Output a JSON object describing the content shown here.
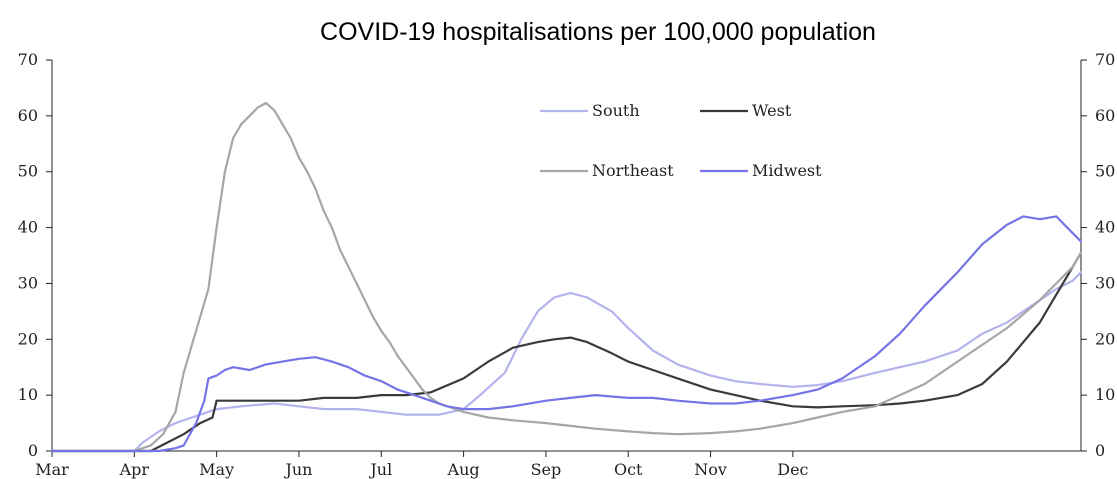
{
  "chart_data": {
    "type": "line",
    "title": "COVID-19 hospitalisations per 100,000 population",
    "xlabel": "",
    "ylabel": "",
    "ylim": [
      0,
      70
    ],
    "yticks": [
      0,
      10,
      20,
      30,
      40,
      50,
      60,
      70
    ],
    "grid": false,
    "legend": "top-center",
    "x_categories": [
      "Mar",
      "Apr",
      "May",
      "Jun",
      "Jul",
      "Aug",
      "Sep",
      "Oct",
      "Nov",
      "Dec"
    ],
    "x_unit": "month (1 = Mar start)",
    "series": [
      {
        "name": "South",
        "color": "#b3b3ee",
        "points": [
          [
            0,
            0
          ],
          [
            1.0,
            0
          ],
          [
            1.1,
            1.5
          ],
          [
            1.3,
            3.5
          ],
          [
            1.5,
            5
          ],
          [
            1.7,
            6
          ],
          [
            2.0,
            7.5
          ],
          [
            2.3,
            8
          ],
          [
            2.7,
            8.5
          ],
          [
            3.0,
            8
          ],
          [
            3.3,
            7.5
          ],
          [
            3.7,
            7.5
          ],
          [
            4.0,
            7
          ],
          [
            4.3,
            6.5
          ],
          [
            4.7,
            6.5
          ],
          [
            5.0,
            7.5
          ],
          [
            5.2,
            10
          ],
          [
            5.5,
            14
          ],
          [
            5.7,
            20
          ],
          [
            5.9,
            25
          ],
          [
            6.1,
            27.5
          ],
          [
            6.3,
            28.3
          ],
          [
            6.5,
            27.5
          ],
          [
            6.8,
            25
          ],
          [
            7.0,
            22
          ],
          [
            7.3,
            18
          ],
          [
            7.6,
            15.5
          ],
          [
            8.0,
            13.5
          ],
          [
            8.3,
            12.5
          ],
          [
            8.6,
            12
          ],
          [
            9.0,
            11.5
          ],
          [
            9.3,
            11.8
          ],
          [
            9.6,
            12.5
          ],
          [
            10.0,
            14
          ],
          [
            10.3,
            15
          ],
          [
            10.6,
            16
          ],
          [
            11.0,
            18
          ],
          [
            11.3,
            21
          ],
          [
            11.6,
            23
          ],
          [
            12.0,
            27
          ],
          [
            12.2,
            29
          ],
          [
            12.4,
            30.5
          ],
          [
            12.5,
            32
          ]
        ]
      },
      {
        "name": "West",
        "color": "#3a3a3a",
        "points": [
          [
            0,
            0
          ],
          [
            1.2,
            0
          ],
          [
            1.4,
            1.5
          ],
          [
            1.6,
            3
          ],
          [
            1.8,
            5
          ],
          [
            1.95,
            6
          ],
          [
            2.0,
            9
          ],
          [
            2.3,
            9
          ],
          [
            2.7,
            9
          ],
          [
            3.0,
            9
          ],
          [
            3.3,
            9.5
          ],
          [
            3.7,
            9.5
          ],
          [
            4.0,
            10
          ],
          [
            4.3,
            10
          ],
          [
            4.6,
            10.5
          ],
          [
            5.0,
            13
          ],
          [
            5.3,
            16
          ],
          [
            5.6,
            18.5
          ],
          [
            5.9,
            19.5
          ],
          [
            6.1,
            20
          ],
          [
            6.3,
            20.3
          ],
          [
            6.5,
            19.5
          ],
          [
            6.8,
            17.5
          ],
          [
            7.0,
            16
          ],
          [
            7.3,
            14.5
          ],
          [
            7.6,
            13
          ],
          [
            8.0,
            11
          ],
          [
            8.3,
            10
          ],
          [
            8.6,
            9
          ],
          [
            9.0,
            8
          ],
          [
            9.3,
            7.8
          ],
          [
            9.6,
            8
          ],
          [
            10.0,
            8.2
          ],
          [
            10.3,
            8.5
          ],
          [
            10.6,
            9
          ],
          [
            11.0,
            10
          ],
          [
            11.3,
            12
          ],
          [
            11.6,
            16
          ],
          [
            12.0,
            23
          ],
          [
            12.2,
            28
          ],
          [
            12.4,
            33
          ],
          [
            12.5,
            35.5
          ]
        ]
      },
      {
        "name": "Northeast",
        "color": "#a6a6a6",
        "points": [
          [
            0,
            0
          ],
          [
            1.0,
            0
          ],
          [
            1.1,
            0.5
          ],
          [
            1.2,
            1
          ],
          [
            1.35,
            3
          ],
          [
            1.5,
            7
          ],
          [
            1.6,
            14
          ],
          [
            1.7,
            19
          ],
          [
            1.8,
            24
          ],
          [
            1.9,
            29
          ],
          [
            2.0,
            40
          ],
          [
            2.1,
            50
          ],
          [
            2.2,
            56
          ],
          [
            2.3,
            58.5
          ],
          [
            2.4,
            60
          ],
          [
            2.5,
            61.5
          ],
          [
            2.6,
            62.3
          ],
          [
            2.7,
            61
          ],
          [
            2.8,
            58.5
          ],
          [
            2.9,
            56
          ],
          [
            3.0,
            52.5
          ],
          [
            3.1,
            50
          ],
          [
            3.2,
            47
          ],
          [
            3.3,
            43
          ],
          [
            3.4,
            40
          ],
          [
            3.5,
            36
          ],
          [
            3.6,
            33
          ],
          [
            3.7,
            30
          ],
          [
            3.8,
            27
          ],
          [
            3.9,
            24
          ],
          [
            4.0,
            21.5
          ],
          [
            4.1,
            19.5
          ],
          [
            4.2,
            17
          ],
          [
            4.3,
            15
          ],
          [
            4.4,
            13
          ],
          [
            4.5,
            11
          ],
          [
            4.6,
            9.5
          ],
          [
            4.7,
            8.5
          ],
          [
            5.0,
            7
          ],
          [
            5.3,
            6
          ],
          [
            5.6,
            5.5
          ],
          [
            6.0,
            5
          ],
          [
            6.3,
            4.5
          ],
          [
            6.6,
            4
          ],
          [
            7.0,
            3.5
          ],
          [
            7.3,
            3.2
          ],
          [
            7.6,
            3
          ],
          [
            8.0,
            3.2
          ],
          [
            8.3,
            3.5
          ],
          [
            8.6,
            4
          ],
          [
            9.0,
            5
          ],
          [
            9.3,
            6
          ],
          [
            9.6,
            7
          ],
          [
            10.0,
            8
          ],
          [
            10.3,
            10
          ],
          [
            10.6,
            12
          ],
          [
            11.0,
            16
          ],
          [
            11.3,
            19
          ],
          [
            11.6,
            22
          ],
          [
            12.0,
            27
          ],
          [
            12.2,
            30
          ],
          [
            12.4,
            33
          ],
          [
            12.5,
            35.5
          ]
        ]
      },
      {
        "name": "Midwest",
        "color": "#7474e6",
        "points": [
          [
            0,
            0
          ],
          [
            1.3,
            0
          ],
          [
            1.5,
            0.5
          ],
          [
            1.6,
            1
          ],
          [
            1.75,
            5
          ],
          [
            1.85,
            9
          ],
          [
            1.9,
            13
          ],
          [
            2.0,
            13.5
          ],
          [
            2.1,
            14.5
          ],
          [
            2.2,
            15
          ],
          [
            2.4,
            14.5
          ],
          [
            2.6,
            15.5
          ],
          [
            2.8,
            16
          ],
          [
            3.0,
            16.5
          ],
          [
            3.2,
            16.8
          ],
          [
            3.4,
            16
          ],
          [
            3.6,
            15
          ],
          [
            3.8,
            13.5
          ],
          [
            4.0,
            12.5
          ],
          [
            4.2,
            11
          ],
          [
            4.4,
            10
          ],
          [
            4.6,
            9
          ],
          [
            4.8,
            8
          ],
          [
            5.0,
            7.5
          ],
          [
            5.3,
            7.5
          ],
          [
            5.6,
            8
          ],
          [
            6.0,
            9
          ],
          [
            6.3,
            9.5
          ],
          [
            6.6,
            10
          ],
          [
            7.0,
            9.5
          ],
          [
            7.3,
            9.5
          ],
          [
            7.6,
            9
          ],
          [
            8.0,
            8.5
          ],
          [
            8.3,
            8.5
          ],
          [
            8.6,
            9
          ],
          [
            9.0,
            10
          ],
          [
            9.3,
            11
          ],
          [
            9.6,
            13
          ],
          [
            10.0,
            17
          ],
          [
            10.3,
            21
          ],
          [
            10.6,
            26
          ],
          [
            11.0,
            32
          ],
          [
            11.3,
            37
          ],
          [
            11.6,
            40.5
          ],
          [
            11.8,
            42
          ],
          [
            12.0,
            41.5
          ],
          [
            12.2,
            42
          ],
          [
            12.3,
            40.5
          ],
          [
            12.4,
            39
          ],
          [
            12.5,
            37.5
          ]
        ]
      }
    ]
  }
}
